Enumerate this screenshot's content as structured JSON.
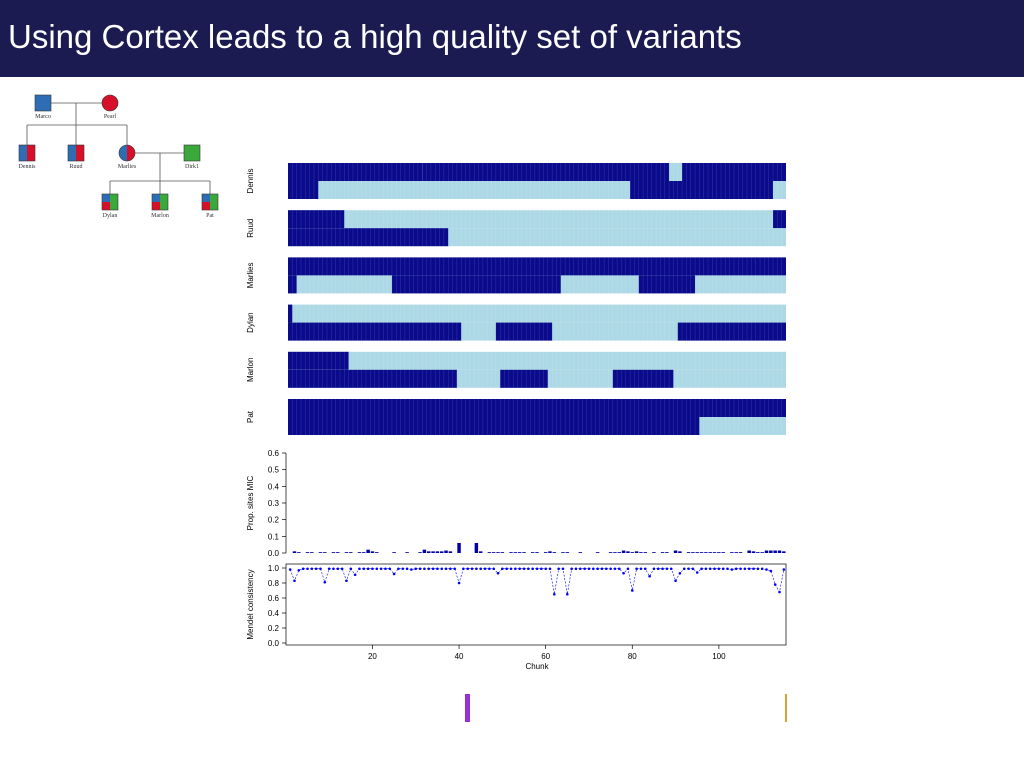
{
  "slide": {
    "title": "Using Cortex leads to a high quality set of variants"
  },
  "colors": {
    "title_bg": "#1b1b52",
    "dark_block": "#0a0a8c",
    "light_block": "#add8e6",
    "male_blue": "#2e6db4",
    "female_red": "#d7102a",
    "green": "#3aa83a",
    "bar_color": "#0000aa",
    "mendel_color": "#0000ff"
  },
  "pedigree": {
    "individuals": [
      {
        "name": "Marco",
        "sex": "male",
        "fill": [
          "blue"
        ]
      },
      {
        "name": "Pearl",
        "sex": "female",
        "fill": [
          "red"
        ]
      },
      {
        "name": "Dennis",
        "sex": "male",
        "fill": [
          "blue",
          "red"
        ]
      },
      {
        "name": "Ruud",
        "sex": "male",
        "fill": [
          "blue",
          "red"
        ]
      },
      {
        "name": "Marlies",
        "sex": "female",
        "fill": [
          "blue",
          "red"
        ]
      },
      {
        "name": "Dirk1",
        "sex": "male",
        "fill": [
          "green"
        ]
      },
      {
        "name": "Dylan",
        "sex": "male",
        "fill": [
          "blue",
          "red",
          "green"
        ]
      },
      {
        "name": "Marlon",
        "sex": "male",
        "fill": [
          "blue",
          "red",
          "green"
        ]
      },
      {
        "name": "Pat",
        "sex": "male",
        "fill": [
          "blue",
          "red",
          "green"
        ]
      }
    ]
  },
  "chart_data": [
    {
      "type": "heatmap",
      "description_rows": "two haplotype rows per individual, dark = inherited from first grandparent, light = other",
      "x_range": [
        1,
        115
      ],
      "individuals": [
        {
          "name": "Dennis",
          "rows": [
            {
              "dark_runs": [
                [
                  1,
                  31
                ],
                [
                  32,
                  88
                ],
                [
                  92,
                  115
                ]
              ]
            },
            {
              "dark_runs": [
                [
                  1,
                  7
                ],
                [
                  80,
                  112
                ]
              ]
            }
          ]
        },
        {
          "name": "Ruud",
          "rows": [
            {
              "dark_runs": [
                [
                  1,
                  13
                ],
                [
                  113,
                  115
                ]
              ]
            },
            {
              "dark_runs": [
                [
                  1,
                  37
                ]
              ]
            }
          ]
        },
        {
          "name": "Marlies",
          "rows": [
            {
              "dark_runs": [
                [
                  1,
                  115
                ]
              ]
            },
            {
              "dark_runs": [
                [
                  1,
                  2
                ],
                [
                  25,
                  63
                ],
                [
                  82,
                  94
                ]
              ]
            }
          ]
        },
        {
          "name": "Dylan",
          "rows": [
            {
              "dark_runs": [
                [
                  1,
                  1
                ]
              ]
            },
            {
              "dark_runs": [
                [
                  1,
                  40
                ],
                [
                  49,
                  61
                ],
                [
                  91,
                  115
                ]
              ]
            }
          ]
        },
        {
          "name": "Marlon",
          "rows": [
            {
              "dark_runs": [
                [
                  1,
                  14
                ]
              ]
            },
            {
              "dark_runs": [
                [
                  1,
                  39
                ],
                [
                  50,
                  60
                ],
                [
                  76,
                  89
                ]
              ]
            }
          ]
        },
        {
          "name": "Pat",
          "rows": [
            {
              "dark_runs": [
                [
                  1,
                  115
                ]
              ]
            },
            {
              "dark_runs": [
                [
                  1,
                  95
                ]
              ]
            }
          ]
        }
      ]
    },
    {
      "type": "bar",
      "ylabel": "Prop. sites MIC",
      "ylim": [
        0,
        0.6
      ],
      "y_ticks": [
        "0.0",
        "0.1",
        "0.2",
        "0.3",
        "0.4",
        "0.5",
        "0.6"
      ],
      "x_range": [
        1,
        115
      ],
      "values": [
        0.0,
        0.01,
        0.005,
        0.0,
        0.005,
        0.005,
        0.0,
        0.005,
        0.005,
        0.0,
        0.005,
        0.005,
        0.0,
        0.005,
        0.005,
        0.0,
        0.005,
        0.005,
        0.02,
        0.01,
        0.005,
        0.0,
        0.0,
        0.0,
        0.005,
        0.0,
        0.0,
        0.005,
        0.0,
        0.0,
        0.005,
        0.02,
        0.01,
        0.01,
        0.01,
        0.01,
        0.015,
        0.01,
        0.0,
        0.06,
        0.0,
        0.0,
        0.0,
        0.06,
        0.01,
        0.0,
        0.005,
        0.005,
        0.005,
        0.005,
        0.0,
        0.005,
        0.005,
        0.005,
        0.005,
        0.0,
        0.005,
        0.005,
        0.0,
        0.005,
        0.01,
        0.005,
        0.0,
        0.005,
        0.005,
        0.0,
        0.0,
        0.005,
        0.0,
        0.0,
        0.0,
        0.005,
        0.0,
        0.0,
        0.005,
        0.005,
        0.005,
        0.015,
        0.01,
        0.005,
        0.01,
        0.005,
        0.005,
        0.0,
        0.005,
        0.0,
        0.005,
        0.005,
        0.0,
        0.015,
        0.01,
        0.0,
        0.005,
        0.005,
        0.005,
        0.005,
        0.005,
        0.005,
        0.005,
        0.005,
        0.005,
        0.0,
        0.005,
        0.005,
        0.005,
        0.0,
        0.015,
        0.01,
        0.005,
        0.005,
        0.015,
        0.015,
        0.015,
        0.015,
        0.01
      ]
    },
    {
      "type": "line",
      "ylabel": "Mendel consistency",
      "xlabel": "Chunk",
      "ylim": [
        0.0,
        1.0
      ],
      "y_ticks": [
        "0.0",
        "0.2",
        "0.4",
        "0.6",
        "0.8",
        "1.0"
      ],
      "x_ticks": [
        "20",
        "40",
        "60",
        "80",
        "100"
      ],
      "x_range": [
        1,
        115
      ],
      "values": [
        0.98,
        0.83,
        0.97,
        0.99,
        0.99,
        0.99,
        0.99,
        0.99,
        0.81,
        0.99,
        0.99,
        0.99,
        0.99,
        0.83,
        0.99,
        0.91,
        0.99,
        0.99,
        0.99,
        0.99,
        0.99,
        0.99,
        0.99,
        0.99,
        0.92,
        0.99,
        0.99,
        0.99,
        0.98,
        0.99,
        0.99,
        0.99,
        0.99,
        0.99,
        0.99,
        0.99,
        0.99,
        0.99,
        0.99,
        0.8,
        0.99,
        0.99,
        0.99,
        0.99,
        0.99,
        0.99,
        0.99,
        0.99,
        0.93,
        0.99,
        0.99,
        0.99,
        0.99,
        0.99,
        0.99,
        0.99,
        0.99,
        0.99,
        0.99,
        0.99,
        0.99,
        0.65,
        0.99,
        0.99,
        0.65,
        0.99,
        0.99,
        0.99,
        0.99,
        0.99,
        0.99,
        0.99,
        0.99,
        0.99,
        0.99,
        0.99,
        0.99,
        0.93,
        0.99,
        0.7,
        0.99,
        0.99,
        0.99,
        0.89,
        0.99,
        0.99,
        0.99,
        0.99,
        0.99,
        0.83,
        0.93,
        0.99,
        0.99,
        0.99,
        0.94,
        0.99,
        0.99,
        0.99,
        0.99,
        0.99,
        0.99,
        0.99,
        0.98,
        0.99,
        0.99,
        0.99,
        0.99,
        0.99,
        0.99,
        0.99,
        0.98,
        0.96,
        0.78,
        0.68,
        0.98
      ]
    }
  ]
}
